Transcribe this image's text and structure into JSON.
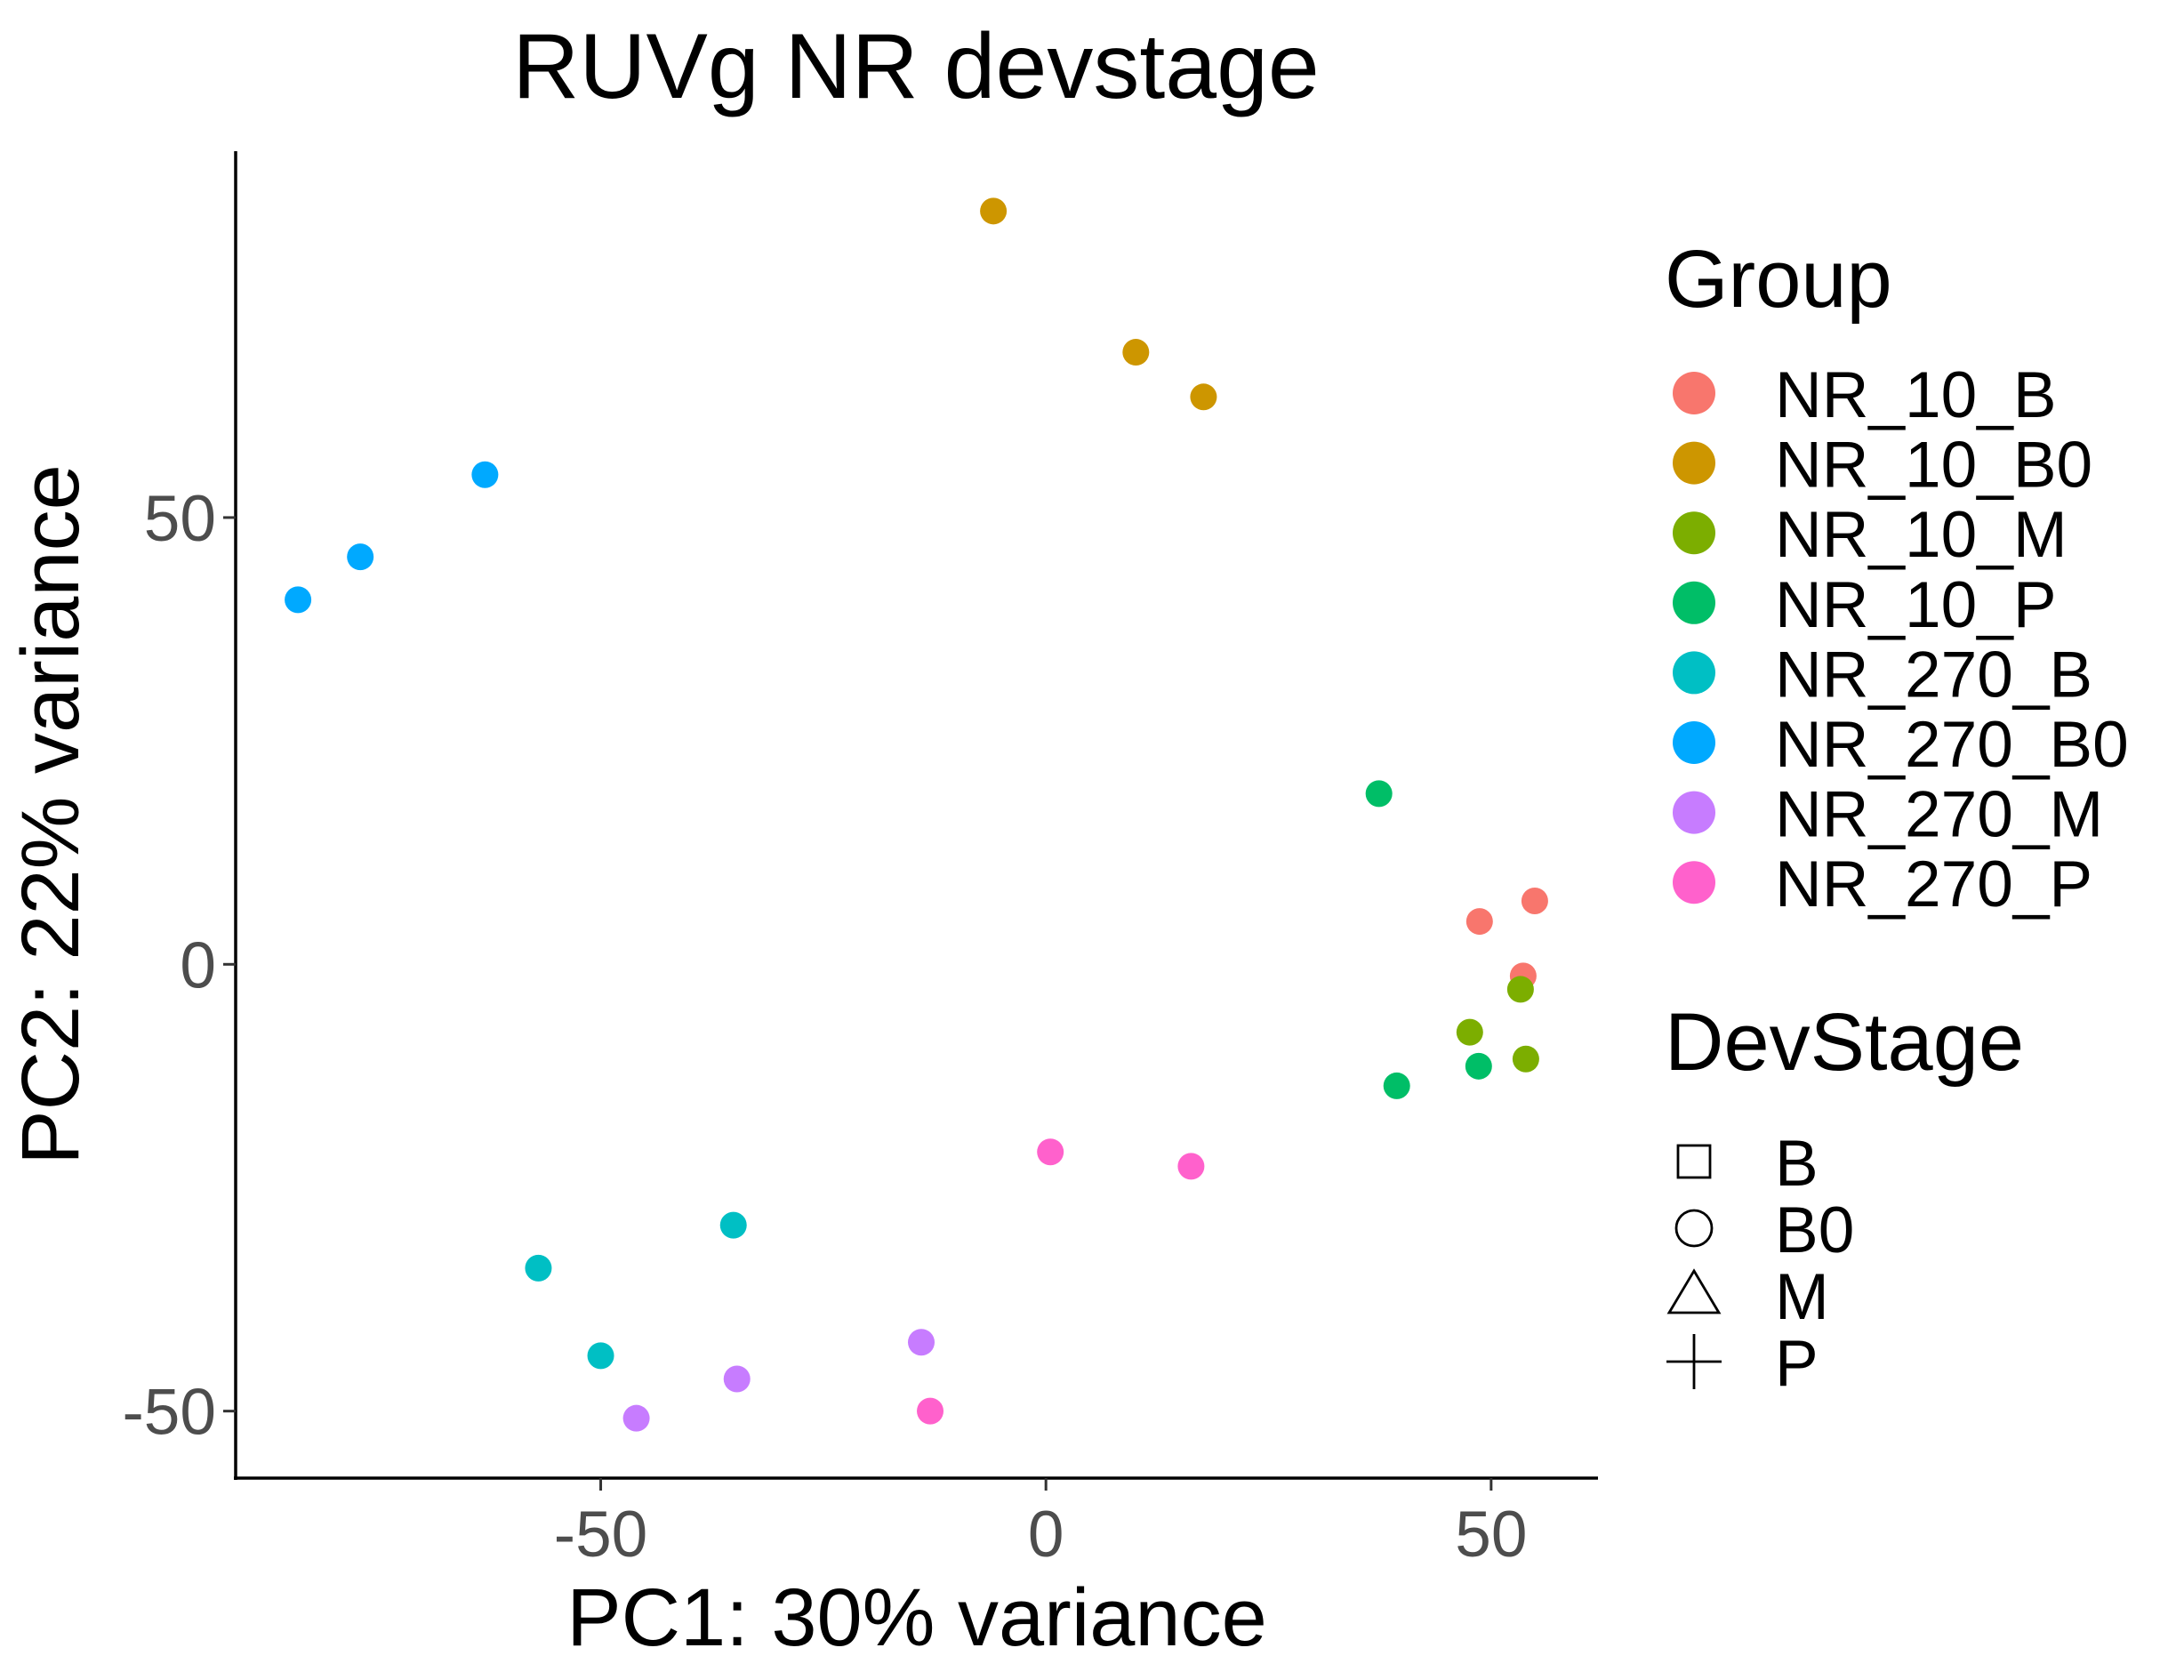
{
  "chart_data": {
    "type": "scatter",
    "title": "RUVg NR devstage",
    "xlabel": "PC1: 30% variance",
    "ylabel": "PC2: 22% variance",
    "xlim": [
      -91,
      62
    ],
    "ylim": [
      -57.5,
      91
    ],
    "xticks": [
      -50,
      0,
      50
    ],
    "yticks": [
      -50,
      0,
      50
    ],
    "grid": false,
    "legend_position": "right",
    "group_legend": {
      "title": "Group",
      "entries": [
        {
          "name": "NR_10_B",
          "color": "#F8766D"
        },
        {
          "name": "NR_10_B0",
          "color": "#CD9600"
        },
        {
          "name": "NR_10_M",
          "color": "#7CAE00"
        },
        {
          "name": "NR_10_P",
          "color": "#00BE67"
        },
        {
          "name": "NR_270_B",
          "color": "#00BFC4"
        },
        {
          "name": "NR_270_B0",
          "color": "#00A9FF"
        },
        {
          "name": "NR_270_M",
          "color": "#C77CFF"
        },
        {
          "name": "NR_270_P",
          "color": "#FF61CC"
        }
      ]
    },
    "shape_legend": {
      "title": "DevStage",
      "entries": [
        {
          "name": "B",
          "shape": "square"
        },
        {
          "name": "B0",
          "shape": "circle"
        },
        {
          "name": "M",
          "shape": "triangle"
        },
        {
          "name": "P",
          "shape": "plus"
        }
      ]
    },
    "points": [
      {
        "group": "NR_10_B",
        "stage": "B",
        "x": 48.7,
        "y": 4.8
      },
      {
        "group": "NR_10_B",
        "stage": "B",
        "x": 54.9,
        "y": 7.1
      },
      {
        "group": "NR_10_B",
        "stage": "B",
        "x": 53.6,
        "y": -1.3
      },
      {
        "group": "NR_10_B0",
        "stage": "B0",
        "x": -5.9,
        "y": 84.3
      },
      {
        "group": "NR_10_B0",
        "stage": "B0",
        "x": 10.1,
        "y": 68.5
      },
      {
        "group": "NR_10_B0",
        "stage": "B0",
        "x": 17.7,
        "y": 63.5
      },
      {
        "group": "NR_10_M",
        "stage": "M",
        "x": 53.3,
        "y": -2.8
      },
      {
        "group": "NR_10_M",
        "stage": "M",
        "x": 47.6,
        "y": -7.6
      },
      {
        "group": "NR_10_M",
        "stage": "M",
        "x": 53.9,
        "y": -10.6
      },
      {
        "group": "NR_10_P",
        "stage": "P",
        "x": 37.4,
        "y": 19.1
      },
      {
        "group": "NR_10_P",
        "stage": "P",
        "x": 39.4,
        "y": -13.6
      },
      {
        "group": "NR_10_P",
        "stage": "P",
        "x": 48.6,
        "y": -11.4
      },
      {
        "group": "NR_270_B",
        "stage": "B",
        "x": -35.1,
        "y": -29.2
      },
      {
        "group": "NR_270_B",
        "stage": "B",
        "x": -57.0,
        "y": -34.0
      },
      {
        "group": "NR_270_B",
        "stage": "B",
        "x": -50.0,
        "y": -43.8
      },
      {
        "group": "NR_270_B0",
        "stage": "B0",
        "x": -84.0,
        "y": 40.8
      },
      {
        "group": "NR_270_B0",
        "stage": "B0",
        "x": -77.0,
        "y": 45.6
      },
      {
        "group": "NR_270_B0",
        "stage": "B0",
        "x": -63.0,
        "y": 54.8
      },
      {
        "group": "NR_270_M",
        "stage": "M",
        "x": -14.0,
        "y": -42.3
      },
      {
        "group": "NR_270_M",
        "stage": "M",
        "x": -34.7,
        "y": -46.4
      },
      {
        "group": "NR_270_M",
        "stage": "M",
        "x": -46.0,
        "y": -50.8
      },
      {
        "group": "NR_270_P",
        "stage": "P",
        "x": 0.5,
        "y": -21.0
      },
      {
        "group": "NR_270_P",
        "stage": "P",
        "x": 16.3,
        "y": -22.6
      },
      {
        "group": "NR_270_P",
        "stage": "P",
        "x": -13.0,
        "y": -50.0
      }
    ]
  }
}
